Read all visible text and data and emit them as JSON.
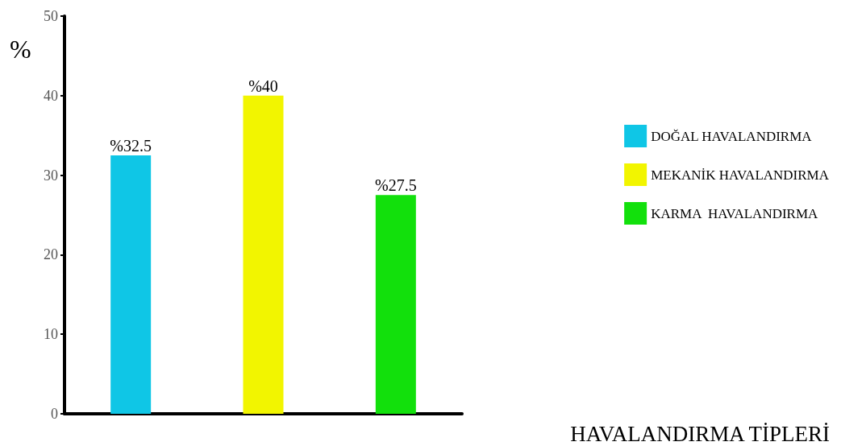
{
  "chart_data": {
    "type": "bar",
    "xlabel": "HAVALANDIRMA TİPLERİ",
    "ylabel": "%",
    "categories": [
      null,
      null,
      null
    ],
    "series": [
      {
        "name": "DOĞAL HAVALANDIRMA",
        "color": "#0fc6e6",
        "values": [
          32.5,
          null,
          null
        ],
        "value_labels": [
          "%32.5",
          null,
          null
        ]
      },
      {
        "name": "MEKANİK HAVALANDIRMA",
        "color": "#f2f500",
        "values": [
          null,
          40,
          null
        ],
        "value_labels": [
          null,
          "%40",
          null
        ]
      },
      {
        "name": "KARMA  HAVALANDIRMA",
        "color": "#12e00c",
        "values": [
          null,
          null,
          27.5
        ],
        "value_labels": [
          null,
          null,
          "%27.5"
        ]
      }
    ],
    "ylim": [
      0,
      50
    ],
    "yticks": [
      0,
      10,
      20,
      30,
      40,
      50
    ],
    "legend": "right",
    "grid": false,
    "tick_labels": "y"
  }
}
